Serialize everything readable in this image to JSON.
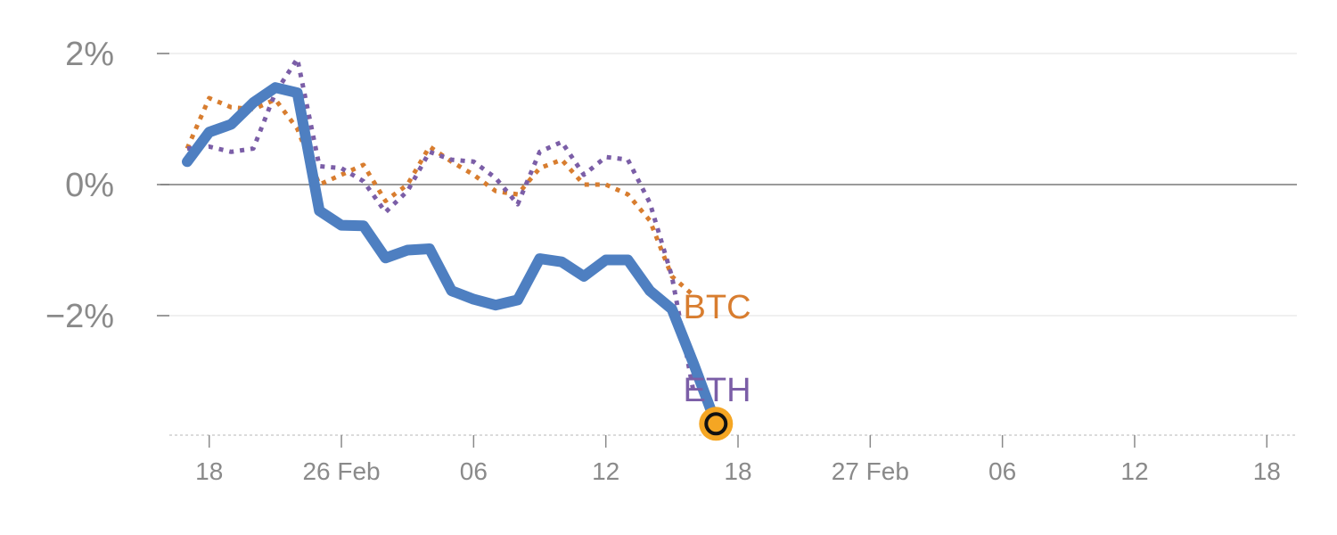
{
  "chart_data": {
    "type": "line",
    "y_ticks": [
      {
        "value": 2,
        "label": "2%"
      },
      {
        "value": 0,
        "label": "0%"
      },
      {
        "value": -2,
        "label": "−2%"
      }
    ],
    "x_ticks": [
      {
        "index": 1,
        "label": "18"
      },
      {
        "index": 7,
        "label": "26 Feb"
      },
      {
        "index": 13,
        "label": "06"
      },
      {
        "index": 19,
        "label": "12"
      },
      {
        "index": 25,
        "label": "18"
      },
      {
        "index": 31,
        "label": "27 Feb"
      },
      {
        "index": 37,
        "label": "06"
      },
      {
        "index": 43,
        "label": "12"
      },
      {
        "index": 49,
        "label": "18"
      }
    ],
    "xlim": [
      -1.2,
      50
    ],
    "ylim": [
      -3.85,
      2.3
    ],
    "zero_line": true,
    "series": [
      {
        "name": "",
        "color": "#4e7fc1",
        "style": "solid",
        "values": [
          0.35,
          0.8,
          0.92,
          1.25,
          1.48,
          1.4,
          -0.4,
          -0.62,
          -0.63,
          -1.12,
          -1.0,
          -0.98,
          -1.62,
          -1.75,
          -1.84,
          -1.76,
          -1.13,
          -1.18,
          -1.4,
          -1.15,
          -1.15,
          -1.62,
          -1.9,
          -2.75,
          -3.65
        ]
      },
      {
        "name": "BTC",
        "color": "#d87d2f",
        "style": "dotted",
        "values": [
          0.55,
          1.32,
          1.18,
          1.15,
          1.3,
          0.85,
          0.0,
          0.15,
          0.3,
          -0.25,
          0.0,
          0.58,
          0.35,
          0.15,
          -0.1,
          -0.15,
          0.25,
          0.38,
          0.0,
          0.0,
          -0.15,
          -0.55,
          -1.4,
          -1.7
        ]
      },
      {
        "name": "ETH",
        "color": "#7b5ea7",
        "style": "dotted",
        "values": [
          0.55,
          0.58,
          0.5,
          0.55,
          1.4,
          1.92,
          0.28,
          0.25,
          0.05,
          -0.42,
          -0.1,
          0.5,
          0.38,
          0.35,
          0.1,
          -0.3,
          0.5,
          0.65,
          0.15,
          0.42,
          0.38,
          -0.28,
          -1.4,
          -3.2
        ]
      }
    ],
    "end_marker": {
      "index": 24,
      "value": -3.65,
      "ring_color": "#f5a623"
    }
  }
}
